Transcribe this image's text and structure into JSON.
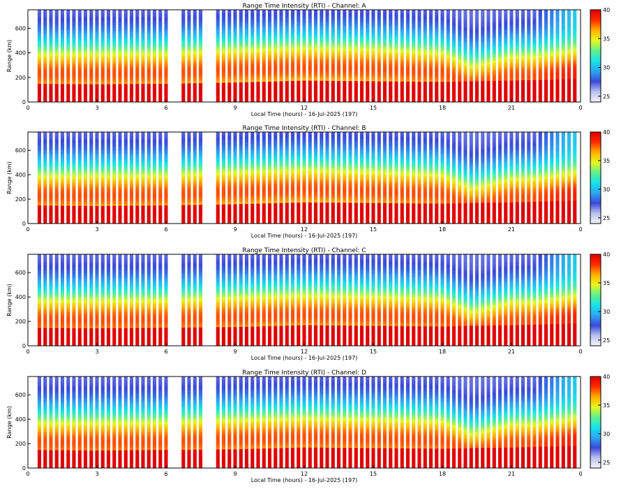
{
  "figure": {
    "colorscale": [
      "#f4f4fb",
      "#b9c2ef",
      "#3b49d8",
      "#2ea6f0",
      "#16e3e8",
      "#62f08e",
      "#e8f81c",
      "#ffae00",
      "#ff2a00",
      "#e10000"
    ]
  },
  "chart_data": [
    {
      "type": "heatmap",
      "title": "Range Time Intensity (RTI) - Channel: A",
      "xlabel": "Local Time (hours) - 16-Jul-2025 (197)",
      "ylabel": "Range (km)",
      "xlim": [
        0,
        24
      ],
      "ylim": [
        0,
        750
      ],
      "x_ticks": [
        "0",
        "3",
        "6",
        "9",
        "12",
        "15",
        "18",
        "21",
        "0"
      ],
      "y_ticks": [
        "0",
        "200",
        "400",
        "600"
      ],
      "colorbar": {
        "min": 24,
        "max": 40,
        "ticks": [
          "25",
          "30",
          "35",
          "40"
        ]
      },
      "gaps": [
        [
          6.05,
          6.6
        ],
        [
          7.7,
          8.1
        ]
      ],
      "low_band": [
        [
          0,
          150
        ],
        [
          3,
          145
        ],
        [
          6,
          150
        ],
        [
          9,
          160
        ],
        [
          12,
          175
        ],
        [
          15,
          170
        ],
        [
          18,
          165
        ],
        [
          21,
          175
        ],
        [
          24,
          190
        ]
      ],
      "peak_band": [
        [
          0,
          230
        ],
        [
          6,
          235
        ],
        [
          8,
          255
        ],
        [
          12,
          280
        ],
        [
          15,
          270
        ],
        [
          18,
          240
        ],
        [
          19.3,
          130
        ],
        [
          21,
          210
        ],
        [
          24,
          210
        ]
      ]
    },
    {
      "type": "heatmap",
      "title": "Range Time Intensity (RTI) - Channel: B",
      "xlabel": "Local Time (hours) - 16-Jul-2025 (197)",
      "ylabel": "Range (km)",
      "xlim": [
        0,
        24
      ],
      "ylim": [
        0,
        750
      ],
      "x_ticks": [
        "0",
        "3",
        "6",
        "9",
        "12",
        "15",
        "18",
        "21",
        "0"
      ],
      "y_ticks": [
        "0",
        "200",
        "400",
        "600"
      ],
      "colorbar": {
        "min": 24,
        "max": 40,
        "ticks": [
          "25",
          "30",
          "35",
          "40"
        ]
      },
      "gaps": [
        [
          6.05,
          6.6
        ],
        [
          7.7,
          8.1
        ]
      ],
      "low_band": [
        [
          0,
          150
        ],
        [
          3,
          145
        ],
        [
          6,
          150
        ],
        [
          9,
          160
        ],
        [
          12,
          175
        ],
        [
          15,
          170
        ],
        [
          18,
          165
        ],
        [
          21,
          175
        ],
        [
          24,
          190
        ]
      ],
      "peak_band": [
        [
          0,
          230
        ],
        [
          6,
          235
        ],
        [
          8,
          255
        ],
        [
          12,
          280
        ],
        [
          15,
          265
        ],
        [
          18,
          240
        ],
        [
          19.3,
          130
        ],
        [
          21,
          210
        ],
        [
          24,
          210
        ]
      ]
    },
    {
      "type": "heatmap",
      "title": "Range Time Intensity (RTI) - Channel: C",
      "xlabel": "Local Time (hours) - 16-Jul-2025 (197)",
      "ylabel": "Range (km)",
      "xlim": [
        0,
        24
      ],
      "ylim": [
        0,
        750
      ],
      "x_ticks": [
        "0",
        "3",
        "6",
        "9",
        "12",
        "15",
        "18",
        "21",
        "0"
      ],
      "y_ticks": [
        "0",
        "200",
        "400",
        "600"
      ],
      "colorbar": {
        "min": 24,
        "max": 40,
        "ticks": [
          "25",
          "30",
          "35",
          "40"
        ]
      },
      "gaps": [
        [
          6.05,
          6.6
        ],
        [
          7.7,
          8.1
        ]
      ],
      "low_band": [
        [
          0,
          150
        ],
        [
          3,
          145
        ],
        [
          6,
          150
        ],
        [
          9,
          155
        ],
        [
          12,
          170
        ],
        [
          15,
          165
        ],
        [
          18,
          160
        ],
        [
          21,
          170
        ],
        [
          24,
          185
        ]
      ],
      "peak_band": [
        [
          0,
          210
        ],
        [
          6,
          215
        ],
        [
          8,
          230
        ],
        [
          12,
          255
        ],
        [
          15,
          245
        ],
        [
          18,
          225
        ],
        [
          19.3,
          120
        ],
        [
          21,
          200
        ],
        [
          24,
          200
        ]
      ]
    },
    {
      "type": "heatmap",
      "title": "Range Time Intensity (RTI) - Channel: D",
      "xlabel": "Local Time (hours) - 16-Jul-2025 (197)",
      "ylabel": "Range (km)",
      "xlim": [
        0,
        24
      ],
      "ylim": [
        0,
        750
      ],
      "x_ticks": [
        "0",
        "3",
        "6",
        "9",
        "12",
        "15",
        "18",
        "21",
        "0"
      ],
      "y_ticks": [
        "0",
        "200",
        "400",
        "600"
      ],
      "colorbar": {
        "min": 24,
        "max": 40,
        "ticks": [
          "25",
          "30",
          "35",
          "40"
        ]
      },
      "gaps": [
        [
          6.05,
          6.6
        ],
        [
          7.7,
          8.1
        ]
      ],
      "low_band": [
        [
          0,
          150
        ],
        [
          3,
          145
        ],
        [
          6,
          150
        ],
        [
          9,
          155
        ],
        [
          12,
          170
        ],
        [
          15,
          165
        ],
        [
          18,
          160
        ],
        [
          21,
          170
        ],
        [
          24,
          185
        ]
      ],
      "peak_band": [
        [
          0,
          210
        ],
        [
          6,
          215
        ],
        [
          8,
          230
        ],
        [
          12,
          250
        ],
        [
          15,
          240
        ],
        [
          18,
          225
        ],
        [
          19.3,
          120
        ],
        [
          21,
          200
        ],
        [
          24,
          200
        ]
      ]
    }
  ]
}
